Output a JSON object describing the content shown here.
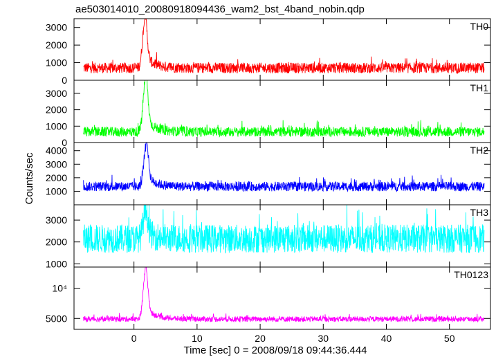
{
  "chart_data": {
    "type": "line",
    "title": "ae503014010_20080918094436_wam2_bst_4band_nobin.qdp",
    "xlabel": "Time [sec] 0 = 2008/09/18 09:44:36.444",
    "ylabel": "Counts/sec",
    "xlim": [
      -9.5,
      56.5
    ],
    "x_ticks": [
      0,
      10,
      20,
      30,
      40,
      50
    ],
    "x_tick_labels": [
      "0",
      "10",
      "20",
      "30",
      "40",
      "50"
    ],
    "grid": false,
    "panels": [
      {
        "label": "TH0",
        "color": "#ff0000",
        "ylim": [
          0,
          3500
        ],
        "y_ticks": [
          0,
          1000,
          2000,
          3000
        ],
        "y_tick_labels": [
          "0",
          "1000",
          "2000",
          "3000"
        ],
        "baseline": 700,
        "noise": 300,
        "peak_time": 1.7,
        "peak_value": 3300,
        "series": [
          {
            "name": "TH0",
            "time_range": [
              -8,
              55.5
            ]
          }
        ]
      },
      {
        "label": "TH1",
        "color": "#00ff00",
        "ylim": [
          0,
          3800
        ],
        "y_ticks": [
          0,
          1000,
          2000,
          3000
        ],
        "y_tick_labels": [
          "0",
          "1000",
          "2000",
          "3000"
        ],
        "baseline": 650,
        "noise": 300,
        "peak_time": 1.8,
        "peak_value": 3800,
        "series": [
          {
            "name": "TH1",
            "time_range": [
              -8,
              55.5
            ]
          }
        ]
      },
      {
        "label": "TH2",
        "color": "#0000ff",
        "ylim": [
          0,
          4600
        ],
        "y_ticks": [
          1000,
          2000,
          3000,
          4000
        ],
        "y_tick_labels": [
          "1000",
          "2000",
          "3000",
          "4000"
        ],
        "baseline": 1350,
        "noise": 350,
        "peak_time": 1.9,
        "peak_value": 4300,
        "series": [
          {
            "name": "TH2",
            "time_range": [
              -8,
              55.5
            ]
          }
        ]
      },
      {
        "label": "TH3",
        "color": "#00ffff",
        "ylim": [
          850,
          3700
        ],
        "y_ticks": [
          1000,
          2000,
          3000
        ],
        "y_tick_labels": [
          "1000",
          "2000",
          "3000"
        ],
        "baseline": 2150,
        "noise": 650,
        "peak_time": 1.8,
        "peak_value": 3400,
        "series": [
          {
            "name": "TH3",
            "time_range": [
              -8,
              55.5
            ]
          }
        ]
      },
      {
        "label": "TH0123",
        "color": "#ff00ff",
        "ylim": [
          3200,
          13500
        ],
        "y_ticks": [
          5000,
          10000
        ],
        "y_tick_labels": [
          "5000",
          "10⁴"
        ],
        "baseline": 4900,
        "noise": 450,
        "peak_time": 1.8,
        "peak_value": 12600,
        "series": [
          {
            "name": "TH0123",
            "time_range": [
              -8,
              55.5
            ]
          }
        ]
      }
    ]
  }
}
